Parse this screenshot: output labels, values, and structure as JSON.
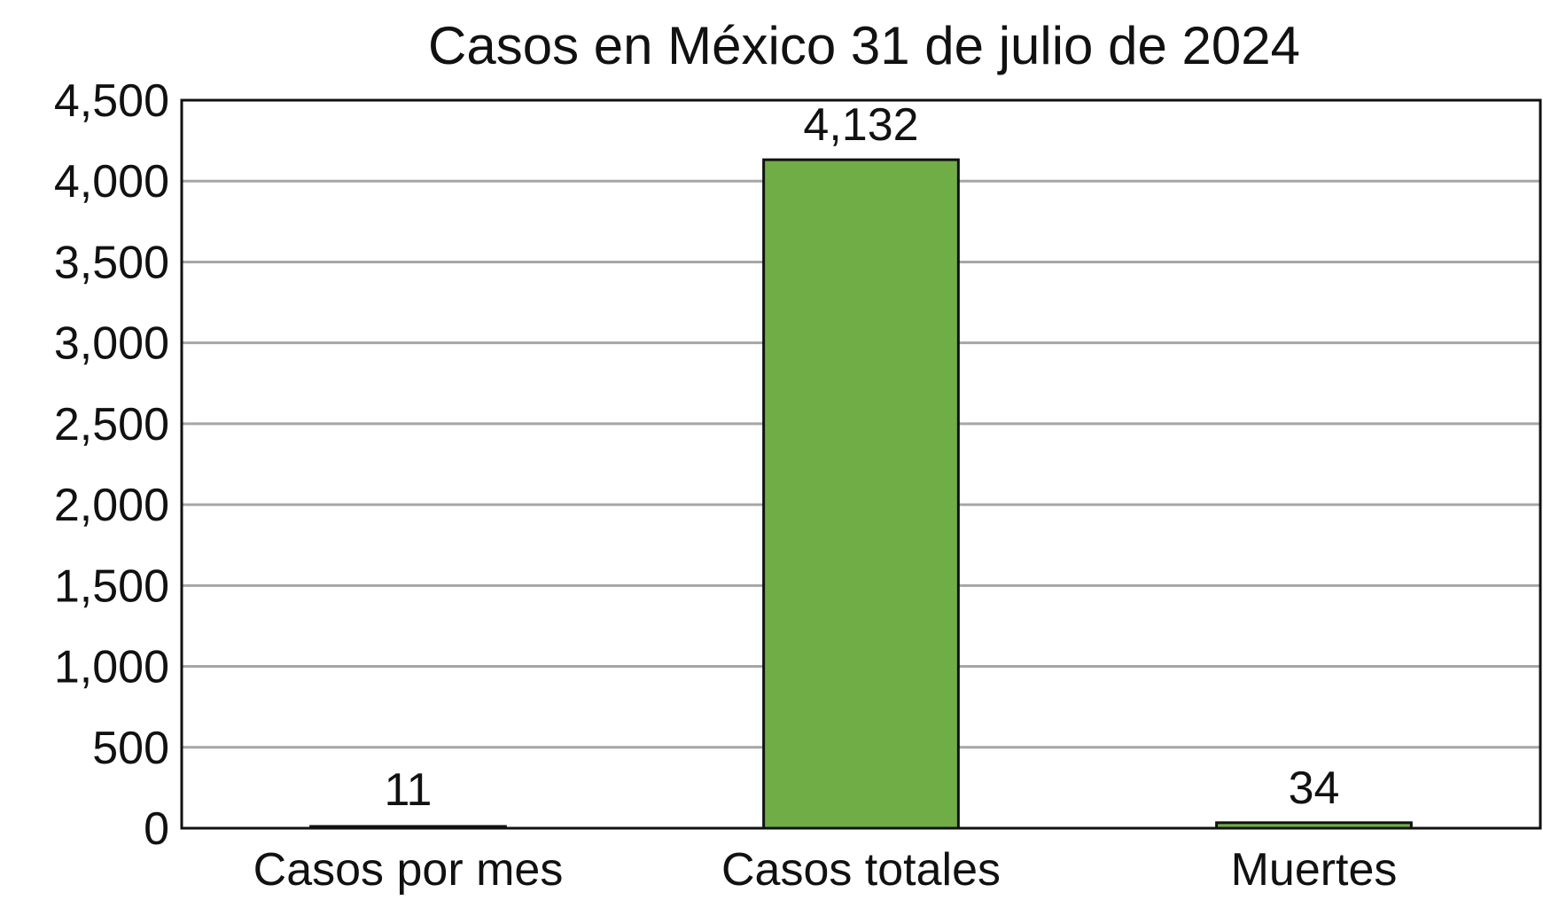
{
  "chart_data": {
    "type": "bar",
    "title": "Casos en México 31 de julio de 2024",
    "xlabel": "",
    "ylabel": "",
    "categories": [
      "Casos por mes",
      "Casos totales",
      "Muertes"
    ],
    "values": [
      11,
      4132,
      34
    ],
    "data_labels": [
      "11",
      "4,132",
      "34"
    ],
    "ylim": [
      0,
      4500
    ],
    "yticks": [
      0,
      500,
      1000,
      1500,
      2000,
      2500,
      3000,
      3500,
      4000,
      4500
    ],
    "ytick_labels": [
      "0",
      "500",
      "1,000",
      "1,500",
      "2,000",
      "2,500",
      "3,000",
      "3,500",
      "4,000",
      "4,500"
    ],
    "grid": true,
    "legend": "none",
    "colors": {
      "bar": "#70ad47",
      "grid": "#a6a6a6",
      "axis": "#111111"
    }
  }
}
